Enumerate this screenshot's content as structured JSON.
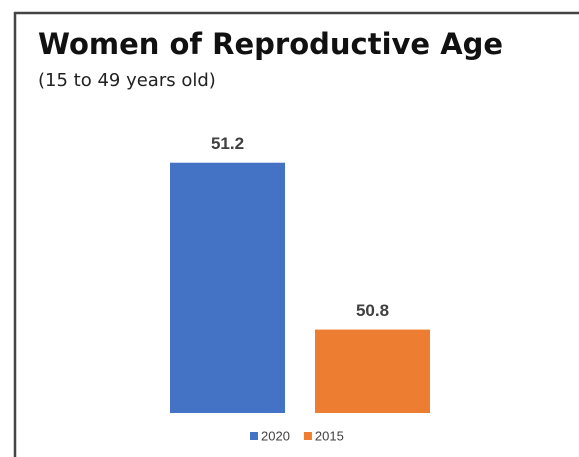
{
  "chart_data": {
    "type": "bar",
    "title": "Women of Reproductive Age",
    "subtitle": "(15 to 49 years old)",
    "categories": [
      null
    ],
    "series": [
      {
        "name": "2020",
        "color": "#4472c4",
        "values": [
          51.2
        ]
      },
      {
        "name": "2015",
        "color": "#ed7d31",
        "values": [
          50.8
        ]
      }
    ],
    "ylim": [
      50.6,
      51.3
    ],
    "legend": "bottom"
  }
}
